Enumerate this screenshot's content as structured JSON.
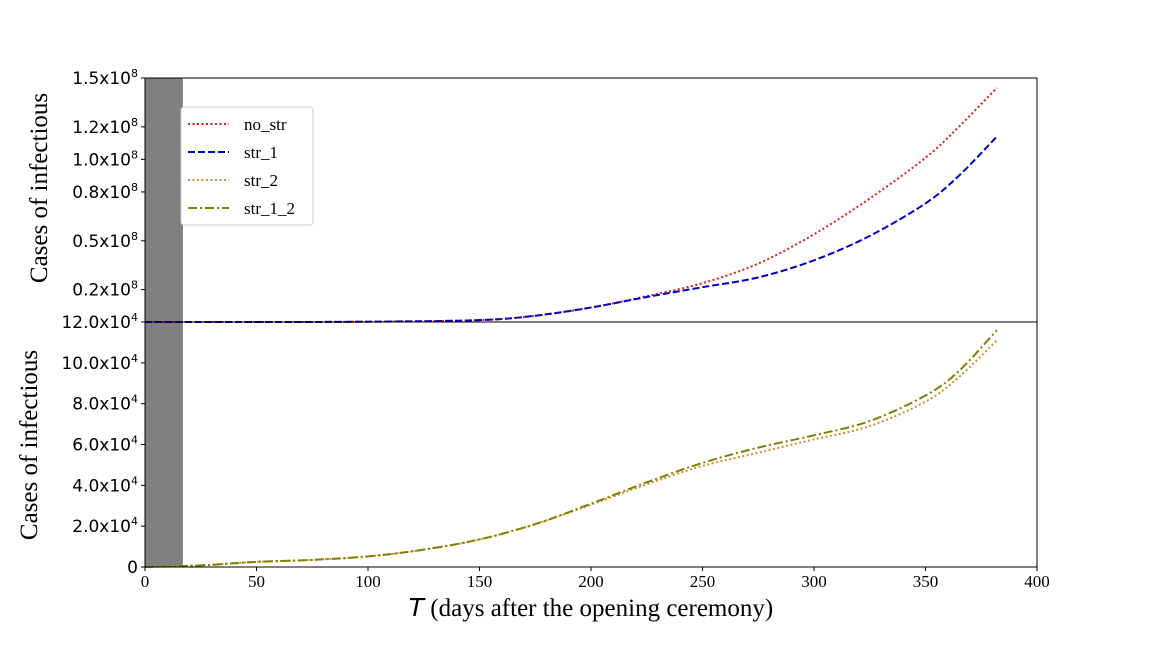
{
  "chart_data": [
    {
      "type": "line",
      "panel": "top",
      "ylabel": "Cases of infectious",
      "xlim": [
        0,
        400
      ],
      "ylim": [
        120000,
        150000000
      ],
      "y_ticks": [
        {
          "value": 120000,
          "base": "12.0x10",
          "exp": "4"
        },
        {
          "value": 20000000,
          "base": "0.2x10",
          "exp": "8"
        },
        {
          "value": 50000000,
          "base": "0.5x10",
          "exp": "8"
        },
        {
          "value": 80000000,
          "base": "0.8x10",
          "exp": "8"
        },
        {
          "value": 100000000,
          "base": "1.0x10",
          "exp": "8"
        },
        {
          "value": 120000000,
          "base": "1.2x10",
          "exp": "8"
        },
        {
          "value": 150000000,
          "base": "1.5x10",
          "exp": "8"
        }
      ],
      "legend": {
        "placement": "top-left"
      },
      "shaded_x": [
        0,
        17
      ],
      "series": [
        {
          "name": "no_str",
          "color": "#e41a1c",
          "style": "dotted",
          "x": [
            0,
            50,
            100,
            150,
            175,
            200,
            225,
            250,
            275,
            300,
            325,
            350,
            365,
            382
          ],
          "y": [
            120000,
            120000,
            300000,
            1300000,
            4000000,
            9000000,
            16000000,
            24000000,
            36000000,
            54000000,
            76000000,
            101000000,
            120000000,
            144000000
          ]
        },
        {
          "name": "str_1",
          "color": "#0000cc",
          "style": "dashed",
          "x": [
            0,
            50,
            100,
            150,
            175,
            200,
            225,
            250,
            275,
            300,
            325,
            350,
            365,
            382
          ],
          "y": [
            120000,
            120000,
            300000,
            1300000,
            4000000,
            9000000,
            15500000,
            21500000,
            27500000,
            38000000,
            53000000,
            73000000,
            90000000,
            114000000
          ]
        }
      ]
    },
    {
      "type": "line",
      "panel": "bottom",
      "xlabel_italic": "T",
      "xlabel": " (days after the opening ceremony)",
      "ylabel": "Cases of infectious",
      "xlim": [
        0,
        400
      ],
      "ylim": [
        0,
        120000
      ],
      "x_ticks": [
        0,
        50,
        100,
        150,
        200,
        250,
        300,
        350,
        400
      ],
      "y_ticks": [
        {
          "value": 0,
          "base": "0",
          "exp": ""
        },
        {
          "value": 20000,
          "base": "2.0x10",
          "exp": "4"
        },
        {
          "value": 40000,
          "base": "4.0x10",
          "exp": "4"
        },
        {
          "value": 60000,
          "base": "6.0x10",
          "exp": "4"
        },
        {
          "value": 80000,
          "base": "8.0x10",
          "exp": "4"
        },
        {
          "value": 100000,
          "base": "10.0x10",
          "exp": "4"
        }
      ],
      "shaded_x": [
        0,
        17
      ],
      "series": [
        {
          "name": "str_2",
          "color": "#d98c2b",
          "style": "dotted",
          "x": [
            0,
            25,
            50,
            75,
            100,
            125,
            150,
            175,
            200,
            225,
            250,
            275,
            300,
            325,
            350,
            365,
            382
          ],
          "y": [
            0,
            800,
            2500,
            3500,
            5200,
            8500,
            13500,
            21000,
            30500,
            40500,
            49500,
            56000,
            62500,
            69000,
            81000,
            93000,
            111000
          ]
        },
        {
          "name": "str_1_2",
          "color": "#808000",
          "style": "dashdot",
          "x": [
            0,
            25,
            50,
            75,
            100,
            125,
            150,
            175,
            200,
            225,
            250,
            275,
            300,
            325,
            350,
            365,
            382
          ],
          "y": [
            0,
            800,
            2500,
            3500,
            5200,
            8500,
            13500,
            21000,
            31000,
            41500,
            51000,
            58500,
            64500,
            71500,
            84000,
            96000,
            116000
          ]
        }
      ]
    }
  ]
}
